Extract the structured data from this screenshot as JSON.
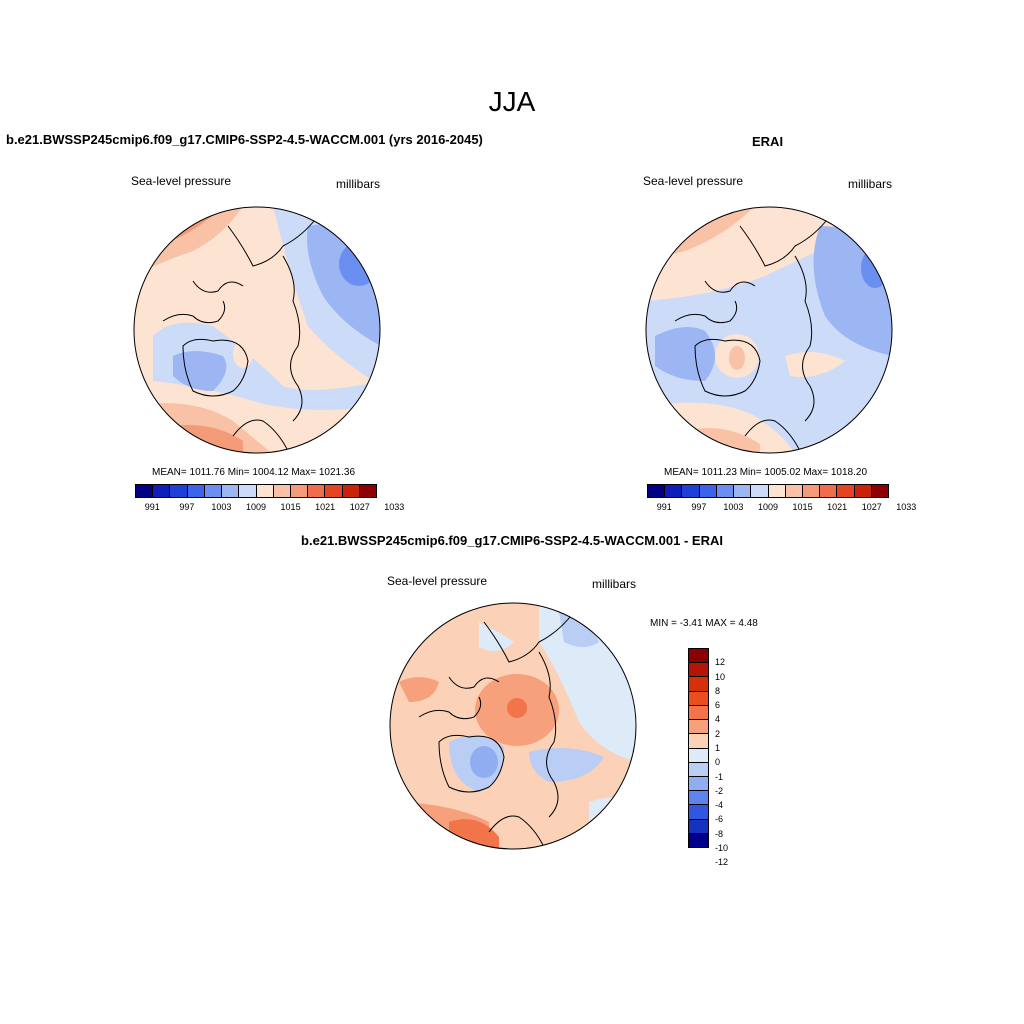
{
  "season": "JJA",
  "colors": {
    "seq": [
      "#000080",
      "#0d1fb8",
      "#1f3fd8",
      "#3c64ea",
      "#6a8ff0",
      "#9cb6f4",
      "#cbdbf8",
      "#fde3d2",
      "#f9c1a6",
      "#f39a79",
      "#ec6e4d",
      "#e34522",
      "#c8210c",
      "#8b0000"
    ],
    "diff": [
      "#8b0000",
      "#b61405",
      "#d62f0c",
      "#ea4d1f",
      "#f2744a",
      "#f7a07c",
      "#fbd1b8",
      "#ddeaf8",
      "#b9cdf5",
      "#8fadf0",
      "#5d84ea",
      "#3057e0",
      "#1532c0",
      "#00008b"
    ],
    "coast": "#000000"
  },
  "panels": {
    "model": {
      "title": "b.e21.BWSSP245cmip6.f09_g17.CMIP6-SSP2-4.5-WACCM.001 (yrs 2016-2045)",
      "var_label": "Sea-level pressure",
      "units": "millibars",
      "stats": "MEAN= 1011.76  Min= 1004.12  Max= 1021.36",
      "cbar_ticks": [
        "991",
        "997",
        "1003",
        "1009",
        "1015",
        "1021",
        "1027",
        "1033"
      ]
    },
    "obs": {
      "title": "ERAI",
      "var_label": "Sea-level pressure",
      "units": "millibars",
      "stats": "MEAN= 1011.23  Min= 1005.02  Max= 1018.20",
      "cbar_ticks": [
        "991",
        "997",
        "1003",
        "1009",
        "1015",
        "1021",
        "1027",
        "1033"
      ]
    },
    "diff": {
      "title": "b.e21.BWSSP245cmip6.f09_g17.CMIP6-SSP2-4.5-WACCM.001 - ERAI",
      "var_label": "Sea-level pressure",
      "units": "millibars",
      "stats": "MIN =  -3.41 MAX =   4.48",
      "cbar_ticks": [
        "12",
        "10",
        "8",
        "6",
        "4",
        "2",
        "1",
        "0",
        "-1",
        "-2",
        "-4",
        "-6",
        "-8",
        "-10",
        "-12"
      ]
    }
  }
}
